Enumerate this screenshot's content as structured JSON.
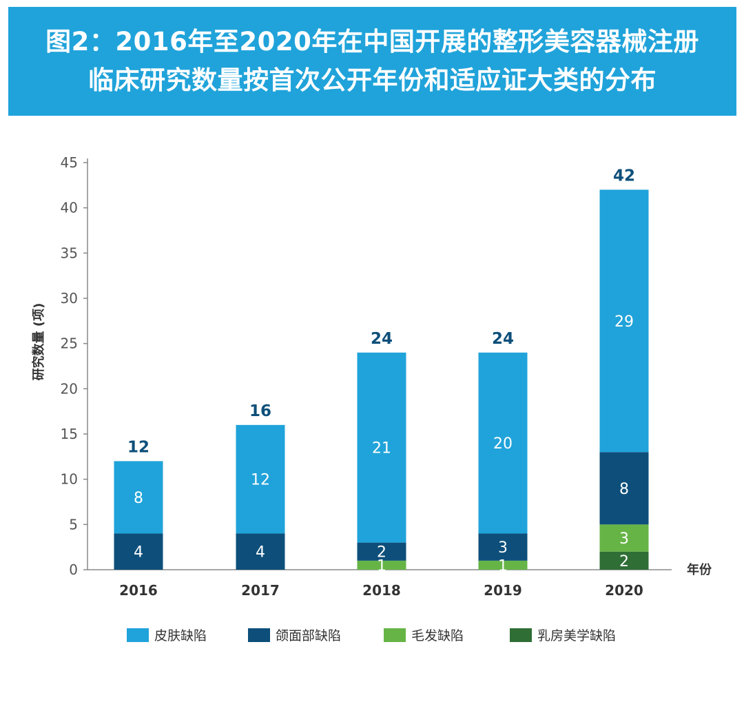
{
  "header": {
    "title_line1": "图2：2016年至2020年在中国开展的整形美容器械注册",
    "title_line2": "临床研究数量按首次公开年份和适应证大类的分布"
  },
  "chart_data": {
    "type": "bar",
    "stacked": true,
    "title": "图2：2016年至2020年在中国开展的整形美容器械注册临床研究数量按首次公开年份和适应证大类的分布",
    "xlabel": "年份",
    "ylabel": "研究数量 (项)",
    "ylim": [
      0,
      45
    ],
    "yticks": [
      0,
      5,
      10,
      15,
      20,
      25,
      30,
      35,
      40,
      45
    ],
    "grid": false,
    "legend_position": "bottom",
    "categories": [
      "2016",
      "2017",
      "2018",
      "2019",
      "2020"
    ],
    "totals": [
      12,
      16,
      24,
      24,
      42
    ],
    "series": [
      {
        "name": "乳房美学缺陷",
        "color": "#2f6e35",
        "values": [
          0,
          0,
          0,
          0,
          2
        ]
      },
      {
        "name": "毛发缺陷",
        "color": "#66b446",
        "values": [
          0,
          0,
          1,
          1,
          3
        ]
      },
      {
        "name": "颌面部缺陷",
        "color": "#0d4f7a",
        "values": [
          4,
          4,
          2,
          3,
          8
        ]
      },
      {
        "name": "皮肤缺陷",
        "color": "#20a3da",
        "values": [
          8,
          12,
          21,
          20,
          29
        ]
      }
    ],
    "legend_order": [
      "皮肤缺陷",
      "颌面部缺陷",
      "毛发缺陷",
      "乳房美学缺陷"
    ]
  }
}
